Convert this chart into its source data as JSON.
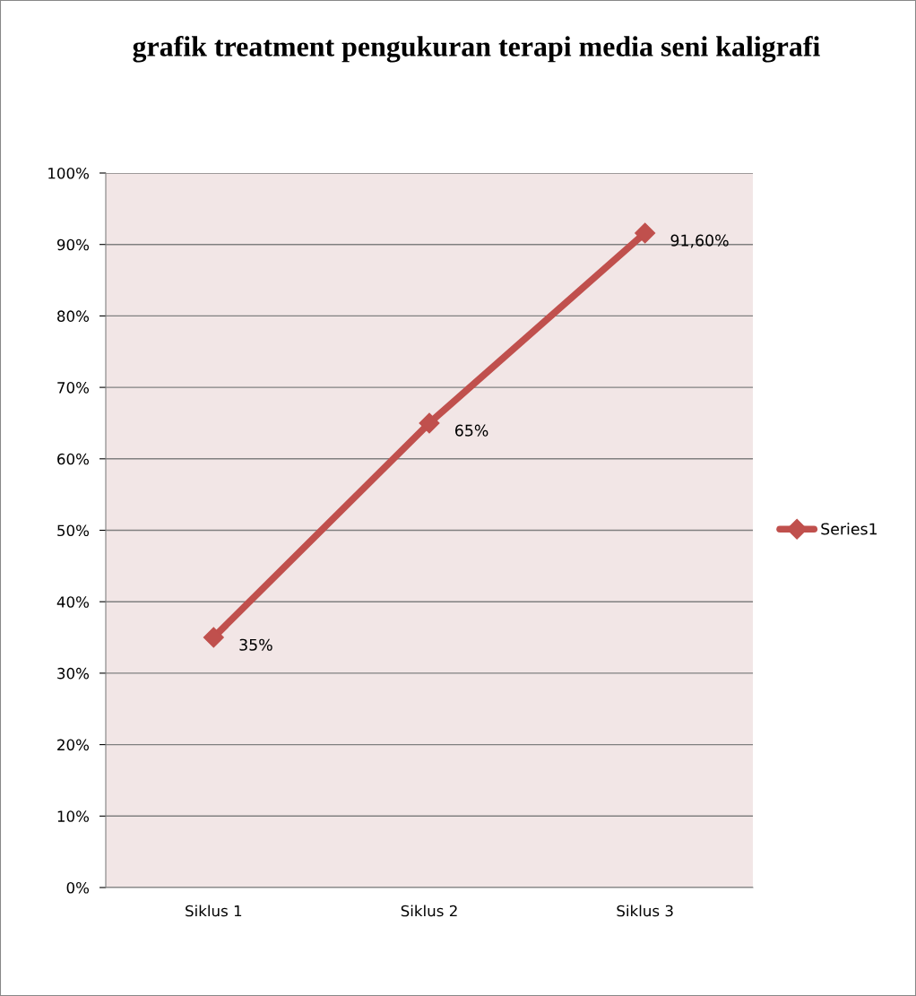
{
  "chart_data": {
    "type": "line",
    "title": "grafik treatment pengukuran terapi media seni kaligrafi",
    "categories": [
      "Siklus 1",
      "Siklus 2",
      "Siklus 3"
    ],
    "series": [
      {
        "name": "Series1",
        "color": "#c0504d",
        "values": [
          35,
          65,
          91.6
        ],
        "value_labels": [
          "35%",
          "65%",
          "91,60%"
        ]
      }
    ],
    "ylim": [
      0,
      100
    ],
    "yticks": [
      {
        "value": 0,
        "label": "0%"
      },
      {
        "value": 10,
        "label": "10%"
      },
      {
        "value": 20,
        "label": "20%"
      },
      {
        "value": 30,
        "label": "30%"
      },
      {
        "value": 40,
        "label": "40%"
      },
      {
        "value": 50,
        "label": "50%"
      },
      {
        "value": 60,
        "label": "60%"
      },
      {
        "value": 70,
        "label": "70%"
      },
      {
        "value": 80,
        "label": "80%"
      },
      {
        "value": 90,
        "label": "90%"
      },
      {
        "value": 100,
        "label": "100%"
      }
    ],
    "grid": "y",
    "legend": "right",
    "marker": "diamond",
    "line_style": "solid"
  }
}
